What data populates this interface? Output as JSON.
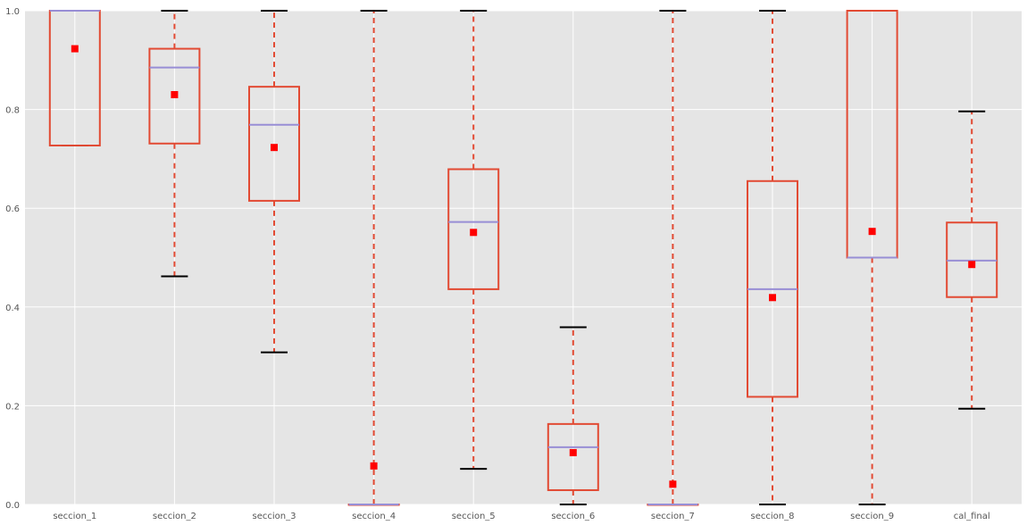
{
  "chart_data": {
    "type": "box",
    "categories": [
      "seccion_1",
      "seccion_2",
      "seccion_3",
      "seccion_4",
      "seccion_5",
      "seccion_6",
      "seccion_7",
      "seccion_8",
      "seccion_9",
      "cal_final"
    ],
    "boxes": [
      {
        "whisker_low": 0.727,
        "q1": 0.727,
        "median": 1.0,
        "q3": 1.0,
        "whisker_high": 1.0,
        "mean": 0.923
      },
      {
        "whisker_low": 0.462,
        "q1": 0.731,
        "median": 0.885,
        "q3": 0.923,
        "whisker_high": 1.0,
        "mean": 0.83
      },
      {
        "whisker_low": 0.308,
        "q1": 0.615,
        "median": 0.769,
        "q3": 0.846,
        "whisker_high": 1.0,
        "mean": 0.723
      },
      {
        "whisker_low": 0.0,
        "q1": 0.0,
        "median": 0.0,
        "q3": 0.0,
        "whisker_high": 1.0,
        "mean": 0.078
      },
      {
        "whisker_low": 0.072,
        "q1": 0.436,
        "median": 0.572,
        "q3": 0.679,
        "whisker_high": 1.0,
        "mean": 0.551
      },
      {
        "whisker_low": 0.0,
        "q1": 0.029,
        "median": 0.116,
        "q3": 0.163,
        "whisker_high": 0.359,
        "mean": 0.105
      },
      {
        "whisker_low": 0.0,
        "q1": 0.0,
        "median": 0.0,
        "q3": 0.0,
        "whisker_high": 1.0,
        "mean": 0.041
      },
      {
        "whisker_low": 0.0,
        "q1": 0.218,
        "median": 0.436,
        "q3": 0.655,
        "whisker_high": 1.0,
        "mean": 0.419
      },
      {
        "whisker_low": 0.0,
        "q1": 0.5,
        "median": 0.5,
        "q3": 1.0,
        "whisker_high": 1.0,
        "mean": 0.553
      },
      {
        "whisker_low": 0.194,
        "q1": 0.42,
        "median": 0.494,
        "q3": 0.571,
        "whisker_high": 0.796,
        "mean": 0.486
      }
    ],
    "y_ticks": [
      "0.0",
      "0.2",
      "0.4",
      "0.6",
      "0.8",
      "1.0"
    ],
    "ylim": [
      0,
      1.0
    ],
    "title": "",
    "xlabel": "",
    "ylabel": "",
    "grid": true,
    "colors": {
      "background": "#e5e5e5",
      "grid": "#ffffff",
      "box": "#e24a33",
      "whisker": "#e24a33",
      "cap": "#000000",
      "median": "#988ed5",
      "mean_marker": "#ff0000"
    }
  }
}
